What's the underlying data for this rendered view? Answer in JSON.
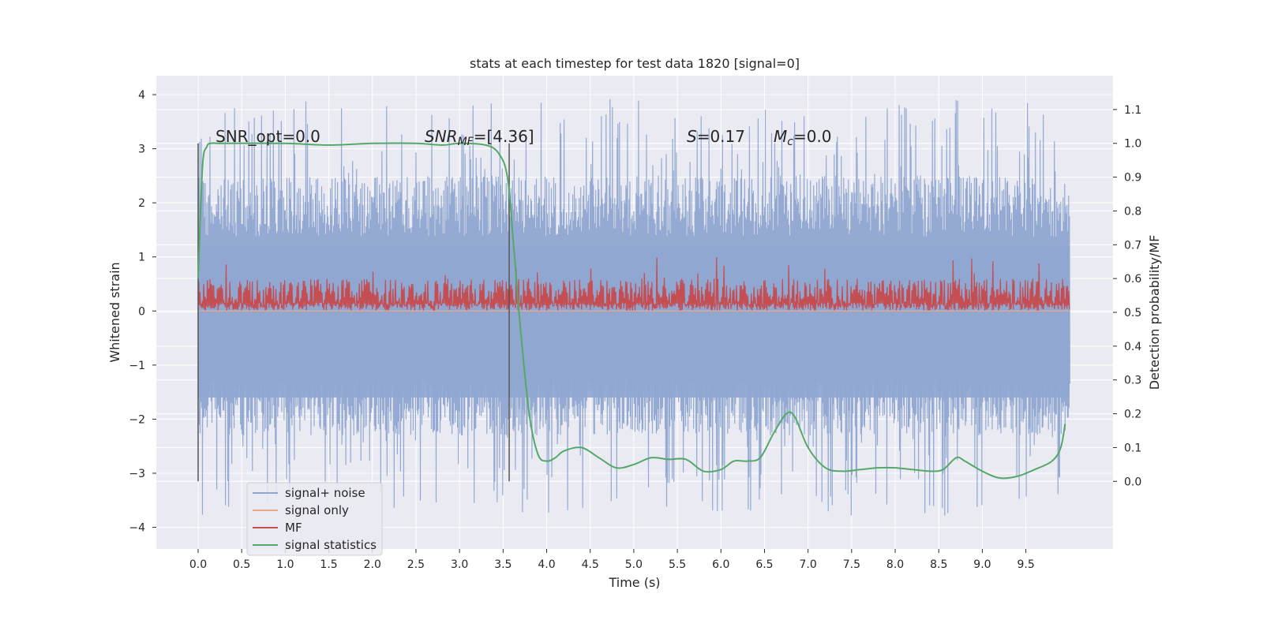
{
  "chart_data": {
    "type": "line",
    "title": "stats at each timestep for test data 1820 [signal=0]",
    "xlabel": "Time (s)",
    "ylabel": "Whitened strain",
    "y2label": "Detection probability/MF",
    "xlim": [
      -0.48,
      10.5
    ],
    "ylim": [
      -4.4,
      4.35
    ],
    "y2lim": [
      -0.2,
      1.2
    ],
    "xticks": [
      "0.0",
      "0.5",
      "1.0",
      "1.5",
      "2.0",
      "2.5",
      "3.0",
      "3.5",
      "4.0",
      "4.5",
      "5.0",
      "5.5",
      "6.0",
      "6.5",
      "7.0",
      "7.5",
      "8.0",
      "8.5",
      "9.0",
      "9.5"
    ],
    "yticks": [
      "4",
      "3",
      "2",
      "1",
      "0",
      "−1",
      "−2",
      "−3",
      "−4"
    ],
    "y2ticks": [
      "1.1",
      "1.0",
      "0.9",
      "0.8",
      "0.7",
      "0.6",
      "0.5",
      "0.4",
      "0.3",
      "0.2",
      "0.1",
      "0.0"
    ],
    "vlines": [
      0.0,
      3.57
    ],
    "annotations": {
      "snr_opt": "SNR_opt=0.0",
      "snr_mf_sym": "SNR",
      "snr_mf_sub": "MF",
      "snr_mf_val": "=[4.36]",
      "s_sym": "S",
      "s_val": "=0.17",
      "mc_sym": "M",
      "mc_sub": "c",
      "mc_val": "=0.0"
    },
    "series": [
      {
        "name": "signal+ noise",
        "color": "#8fa6d0",
        "axis": "left",
        "t_range": [
          0,
          10
        ],
        "envelope_typical": [
          -2.3,
          2.5
        ],
        "envelope_peak": [
          -3.8,
          3.95
        ],
        "description": "whitened noise, no signal"
      },
      {
        "name": "signal only",
        "color": "#e8a786",
        "axis": "left",
        "t": [
          0,
          10
        ],
        "values": [
          0,
          0
        ]
      },
      {
        "name": "MF",
        "color": "#c44e52",
        "axis": "left",
        "t_range": [
          0,
          10
        ],
        "band": [
          0.0,
          0.6
        ],
        "peak": 1.0
      },
      {
        "name": "signal statistics",
        "color": "#55a868",
        "axis": "right",
        "t": [
          0.0,
          0.05,
          0.1,
          0.15,
          0.3,
          1.0,
          1.5,
          2.0,
          2.5,
          2.8,
          3.0,
          3.3,
          3.45,
          3.55,
          3.62,
          3.7,
          3.8,
          3.9,
          4.0,
          4.1,
          4.2,
          4.4,
          4.6,
          4.8,
          5.0,
          5.2,
          5.4,
          5.6,
          5.8,
          6.0,
          6.15,
          6.3,
          6.45,
          6.6,
          6.75,
          6.85,
          7.0,
          7.2,
          7.4,
          7.6,
          7.8,
          8.0,
          8.2,
          8.4,
          8.55,
          8.7,
          8.8,
          9.0,
          9.2,
          9.4,
          9.6,
          9.8,
          9.9,
          9.95
        ],
        "values": [
          0.6,
          0.93,
          0.99,
          1.0,
          1.0,
          1.0,
          0.995,
          1.0,
          1.0,
          0.995,
          1.0,
          0.995,
          0.97,
          0.9,
          0.7,
          0.45,
          0.2,
          0.08,
          0.06,
          0.07,
          0.09,
          0.1,
          0.07,
          0.04,
          0.05,
          0.07,
          0.065,
          0.065,
          0.03,
          0.035,
          0.06,
          0.06,
          0.07,
          0.14,
          0.2,
          0.19,
          0.1,
          0.04,
          0.03,
          0.035,
          0.04,
          0.04,
          0.035,
          0.03,
          0.035,
          0.07,
          0.06,
          0.03,
          0.01,
          0.015,
          0.035,
          0.06,
          0.1,
          0.17
        ]
      }
    ],
    "legend": {
      "position": "lower-left",
      "entries": [
        {
          "label": "signal+ noise",
          "color": "#8fa6d0"
        },
        {
          "label": "signal only",
          "color": "#e8a786"
        },
        {
          "label": "MF",
          "color": "#c44e52"
        },
        {
          "label": "signal statistics",
          "color": "#55a868"
        }
      ]
    }
  },
  "style": {
    "plot_bg": "#eaeaf2",
    "grid": "#ffffff",
    "text": "#262626",
    "vline": "#555555"
  }
}
